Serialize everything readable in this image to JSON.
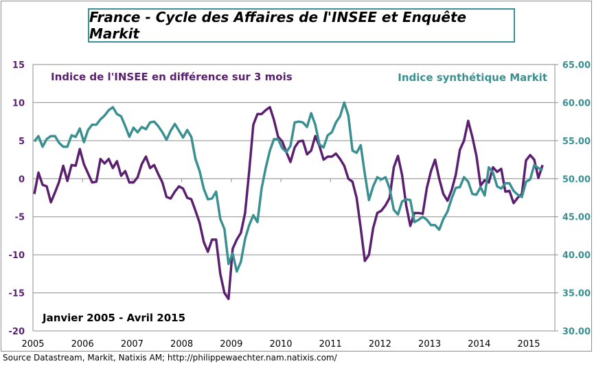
{
  "title": "France - Cycle des Affaires de l'INSEE et Enquête Markit",
  "source": "Source Datastream, Markit, Natixis AM;  http://philippewaechter.nam.natixis.com/",
  "chart_data": {
    "type": "line",
    "title": "France - Cycle des Affaires de l'INSEE et Enquête Markit",
    "annotation": "Janvier 2005 - Avril 2015",
    "x_ticks": [
      "2005",
      "2006",
      "2007",
      "2008",
      "2009",
      "2010",
      "2011",
      "2012",
      "2013",
      "2014",
      "2015"
    ],
    "y_left": {
      "range": [
        -20,
        15
      ],
      "ticks": [
        "15",
        "10",
        "5",
        "0",
        "-5",
        "-10",
        "-15",
        "-20"
      ],
      "color": "#5a1f6e"
    },
    "y_right": {
      "range": [
        30,
        65
      ],
      "ticks": [
        "65.00",
        "60.00",
        "55.00",
        "50.00",
        "45.00",
        "40.00",
        "35.00",
        "30.00"
      ],
      "color": "#3a9090"
    },
    "grid": "horizontal",
    "start": "2005-01",
    "frequency": "monthly",
    "series": [
      {
        "name": "Indice de l'INSEE en différence sur 3 mois",
        "axis": "left",
        "color": "#5a1f6e",
        "values": [
          -2,
          0.8,
          -0.8,
          -1,
          -3.1,
          -1.8,
          -0.4,
          1.7,
          -0.3,
          1.8,
          1.7,
          3.9,
          1.9,
          0.7,
          -0.5,
          -0.4,
          2.6,
          2.0,
          2.6,
          1.4,
          2.3,
          0.4,
          1.0,
          -0.5,
          -0.5,
          0.2,
          1.9,
          2.9,
          1.4,
          1.8,
          0.6,
          -0.5,
          -2.4,
          -2.6,
          -1.7,
          -1.0,
          -1.3,
          -2.5,
          -2.7,
          -4.2,
          -5.8,
          -8.3,
          -9.6,
          -8.0,
          -8.0,
          -12.5,
          -15.0,
          -15.8,
          -9.2,
          -8.0,
          -7.1,
          -4.5,
          1.0,
          7.1,
          8.5,
          8.5,
          9.0,
          9.4,
          7.7,
          5.5,
          4.9,
          3.5,
          2.2,
          4.1,
          4.9,
          5.0,
          3.2,
          3.7,
          5.6,
          4.3,
          2.5,
          2.9,
          2.9,
          3.3,
          2.6,
          1.7,
          0.0,
          -0.4,
          -2.5,
          -6.5,
          -10.8,
          -10.0,
          -6.5,
          -4.5,
          -4.2,
          -3.5,
          -2.5,
          1.5,
          3.0,
          0.5,
          -3.5,
          -6.2,
          -4.5,
          -4.5,
          -4.6,
          -1.2,
          1.0,
          2.5,
          0.0,
          -2.0,
          -2.9,
          -1.5,
          0.5,
          3.8,
          5.0,
          7.6,
          5.5,
          3.0,
          -0.9,
          -0.2,
          -0.5,
          1.5,
          0.9,
          1.3,
          -1.7,
          -1.6,
          -3.2,
          -2.5,
          -2.0,
          2.4,
          3.1,
          2.5,
          0.1,
          1.8
        ]
      },
      {
        "name": "Indice synthétique Markit",
        "axis": "right",
        "color": "#3a9090",
        "values": [
          54.9,
          55.6,
          54.2,
          55.2,
          55.6,
          55.6,
          54.7,
          54.2,
          54.2,
          55.7,
          55.5,
          56.6,
          54.8,
          56.4,
          57.1,
          57.1,
          57.8,
          58.3,
          59.0,
          59.4,
          58.5,
          58.2,
          56.9,
          55.5,
          56.7,
          56.1,
          56.8,
          56.5,
          57.4,
          57.5,
          56.9,
          56.1,
          55.1,
          56.3,
          57.2,
          56.3,
          55.4,
          56.4,
          55.5,
          52.6,
          51.0,
          48.7,
          47.3,
          47.4,
          48.3,
          44.7,
          43.4,
          38.8,
          40.2,
          37.8,
          39.1,
          42.1,
          43.9,
          45.2,
          44.3,
          48.7,
          51.4,
          53.7,
          55.2,
          55.2,
          54.0,
          53.5,
          54.3,
          57.4,
          57.5,
          57.4,
          56.8,
          58.6,
          57.1,
          54.5,
          54.1,
          55.7,
          56.1,
          57.4,
          58.2,
          60.0,
          58.3,
          53.7,
          53.4,
          54.4,
          50.6,
          47.2,
          49.0,
          50.2,
          49.9,
          50.2,
          48.7,
          45.9,
          45.3,
          47.0,
          47.3,
          47.2,
          44.3,
          44.6,
          45.0,
          44.6,
          43.9,
          43.9,
          43.3,
          44.7,
          45.7,
          47.4,
          48.8,
          48.9,
          50.2,
          49.6,
          48.0,
          47.9,
          48.9,
          47.8,
          51.5,
          50.8,
          49.0,
          48.7,
          49.4,
          49.4,
          48.4,
          47.9,
          47.6,
          49.6,
          49.9,
          51.8,
          51.4,
          51.1
        ]
      }
    ]
  }
}
